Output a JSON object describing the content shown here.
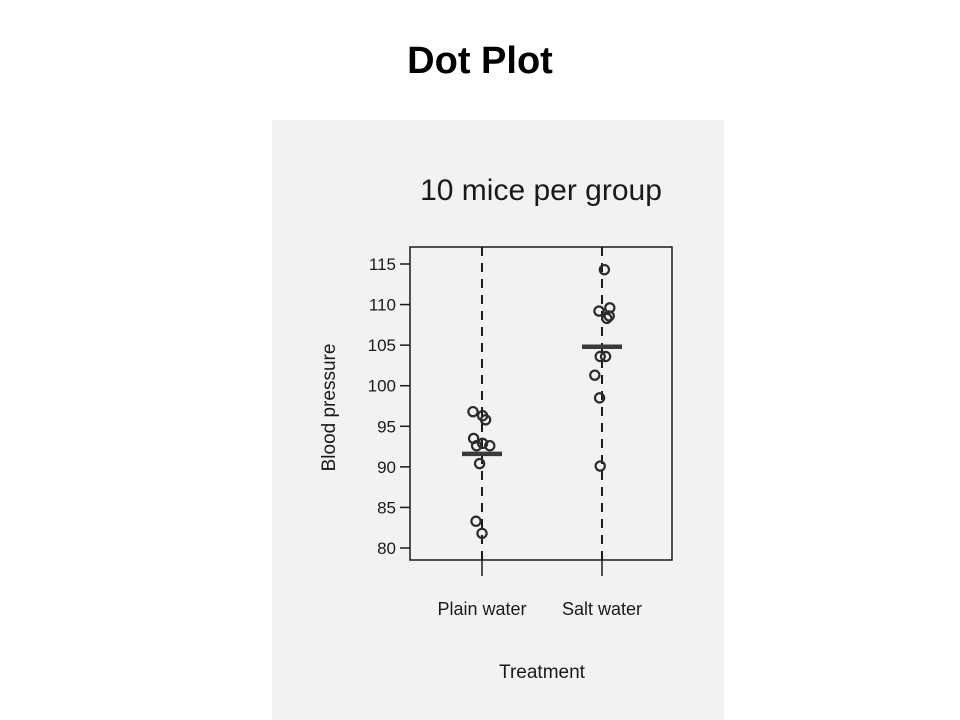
{
  "slide": {
    "title": "Dot Plot"
  },
  "chart_data": {
    "type": "scatter",
    "title": "10 mice per group",
    "xlabel": "Treatment",
    "ylabel": "Blood pressure",
    "categories": [
      "Plain water",
      "Salt water"
    ],
    "ylim": [
      80,
      115
    ],
    "yticks": [
      80,
      85,
      90,
      95,
      100,
      105,
      110,
      115
    ],
    "grid": false,
    "series": [
      {
        "category": "Plain water",
        "points": [
          {
            "offset": -0.15,
            "value": 96.8
          },
          {
            "offset": 0.01,
            "value": 96.3
          },
          {
            "offset": 0.06,
            "value": 95.8
          },
          {
            "offset": -0.14,
            "value": 93.5
          },
          {
            "offset": -0.09,
            "value": 92.6
          },
          {
            "offset": 0.01,
            "value": 92.9
          },
          {
            "offset": 0.13,
            "value": 92.6
          },
          {
            "offset": -0.04,
            "value": 90.4
          },
          {
            "offset": -0.1,
            "value": 83.3
          },
          {
            "offset": 0.0,
            "value": 81.8
          }
        ],
        "mean": 91.6
      },
      {
        "category": "Salt water",
        "points": [
          {
            "offset": 0.04,
            "value": 114.3
          },
          {
            "offset": -0.05,
            "value": 109.2
          },
          {
            "offset": 0.13,
            "value": 109.6
          },
          {
            "offset": 0.08,
            "value": 108.3
          },
          {
            "offset": 0.12,
            "value": 108.6
          },
          {
            "offset": -0.03,
            "value": 103.6
          },
          {
            "offset": 0.06,
            "value": 103.6
          },
          {
            "offset": -0.12,
            "value": 101.3
          },
          {
            "offset": -0.04,
            "value": 98.5
          },
          {
            "offset": -0.03,
            "value": 90.1
          }
        ],
        "mean": 104.8
      }
    ],
    "colors": {
      "points": "#2b2b2b",
      "mean_bar": "#3a3a3a",
      "axis": "#1a1a1a",
      "panel_bg": "#f2f2f2"
    }
  }
}
